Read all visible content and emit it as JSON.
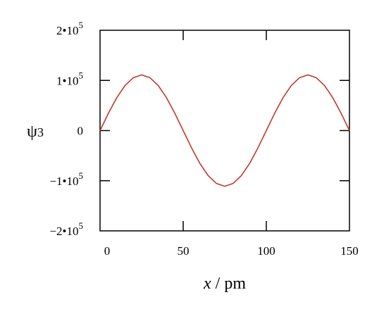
{
  "chart_data": {
    "type": "line",
    "xlabel_var": "x",
    "xlabel_unit": " / pm",
    "ylabel_symbol": "ψ",
    "ylabel_subscript": "3",
    "xlim": [
      0,
      150
    ],
    "ylim": [
      -200000,
      200000
    ],
    "x_ticks": [
      0,
      50,
      100,
      150
    ],
    "x_tick_labels": [
      "0",
      "50",
      "100",
      "150"
    ],
    "y_ticks": [
      200000,
      100000,
      0,
      -100000,
      -200000
    ],
    "y_tick_labels": [
      {
        "mantissa": "2•10",
        "exp": "5"
      },
      {
        "mantissa": "1•10",
        "exp": "5"
      },
      {
        "mantissa": "0",
        "exp": ""
      },
      {
        "mantissa": "−1•10",
        "exp": "5"
      },
      {
        "mantissa": "−2•10",
        "exp": "5"
      }
    ],
    "series": [
      {
        "color": "#c0392b",
        "x": [
          0,
          5,
          10,
          15,
          20,
          25,
          30,
          35,
          40,
          45,
          50,
          55,
          60,
          65,
          70,
          75,
          80,
          85,
          90,
          95,
          100,
          105,
          110,
          115,
          120,
          125,
          130,
          135,
          140,
          145,
          150
        ],
        "y": [
          0,
          34300,
          65300,
          89800,
          105500,
          111000,
          105500,
          89800,
          65300,
          34300,
          0,
          -34300,
          -65300,
          -89800,
          -105500,
          -111000,
          -105500,
          -89800,
          -65300,
          -34300,
          0,
          34300,
          65300,
          89800,
          105500,
          111000,
          105500,
          89800,
          65300,
          34300,
          0
        ]
      }
    ],
    "grid": false
  }
}
